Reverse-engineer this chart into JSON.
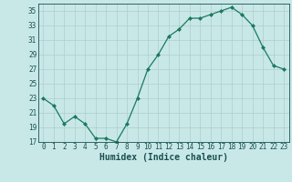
{
  "x": [
    0,
    1,
    2,
    3,
    4,
    5,
    6,
    7,
    8,
    9,
    10,
    11,
    12,
    13,
    14,
    15,
    16,
    17,
    18,
    19,
    20,
    21,
    22,
    23
  ],
  "y": [
    23,
    22,
    19.5,
    20.5,
    19.5,
    17.5,
    17.5,
    17,
    19.5,
    23,
    27,
    29,
    31.5,
    32.5,
    34,
    34,
    34.5,
    35,
    35.5,
    34.5,
    33,
    30,
    27.5,
    27
  ],
  "line_color": "#1a7a5e",
  "marker": "D",
  "marker_size": 2,
  "bg_color": "#c8e8e8",
  "grid_major_color": "#b0cccc",
  "grid_minor_color": "#b0cccc",
  "xlabel": "Humidex (Indice chaleur)",
  "ylim": [
    17,
    36
  ],
  "xlim": [
    -0.5,
    23.5
  ],
  "yticks": [
    17,
    19,
    21,
    23,
    25,
    27,
    29,
    31,
    33,
    35
  ],
  "xticks": [
    0,
    1,
    2,
    3,
    4,
    5,
    6,
    7,
    8,
    9,
    10,
    11,
    12,
    13,
    14,
    15,
    16,
    17,
    18,
    19,
    20,
    21,
    22,
    23
  ],
  "font_color": "#1a5050",
  "tick_fontsize": 5.5,
  "xlabel_fontsize": 7.0
}
